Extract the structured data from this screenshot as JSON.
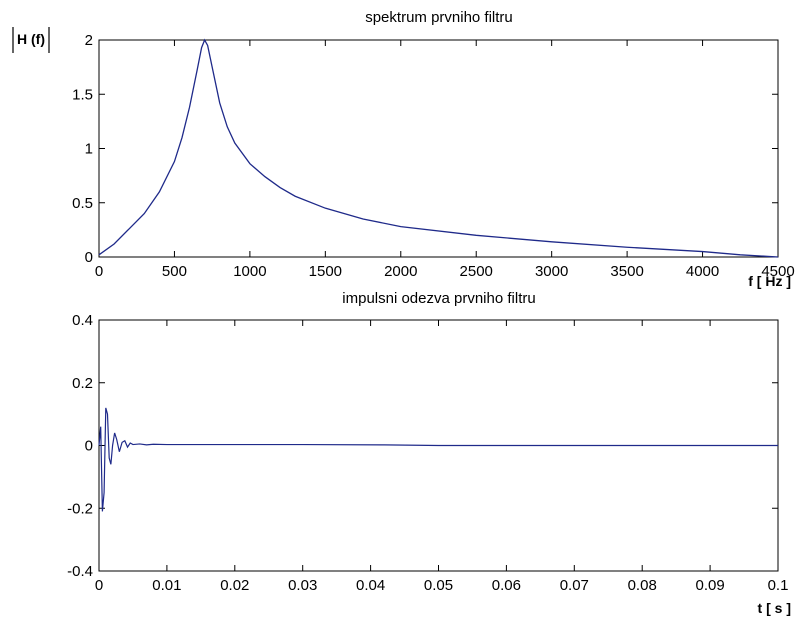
{
  "chart_data": [
    {
      "type": "line",
      "title": "spektrum prvniho filtru",
      "xlabel": "f [ Hz ]",
      "ylabel": "H (f)",
      "xlim": [
        0,
        4500
      ],
      "ylim": [
        0,
        2
      ],
      "xticks": [
        "0",
        "500",
        "1000",
        "1500",
        "2000",
        "2500",
        "3000",
        "3500",
        "4000",
        "4500"
      ],
      "yticks": [
        "0",
        "0.5",
        "1",
        "1.5",
        "2"
      ],
      "grid": false,
      "line_color": "#1f2a8a",
      "series": [
        {
          "x": [
            0,
            100,
            200,
            300,
            400,
            500,
            550,
            600,
            650,
            680,
            700,
            720,
            750,
            800,
            850,
            900,
            1000,
            1100,
            1200,
            1300,
            1500,
            1750,
            2000,
            2500,
            3000,
            3500,
            4000,
            4250,
            4500
          ],
          "values": [
            0.02,
            0.12,
            0.26,
            0.4,
            0.6,
            0.88,
            1.1,
            1.38,
            1.72,
            1.93,
            2.0,
            1.95,
            1.75,
            1.42,
            1.2,
            1.05,
            0.86,
            0.74,
            0.64,
            0.56,
            0.45,
            0.35,
            0.28,
            0.2,
            0.14,
            0.09,
            0.05,
            0.02,
            0.0
          ]
        }
      ]
    },
    {
      "type": "line",
      "title": "impulsni odezva prvniho filtru",
      "xlabel": "t [ s ]",
      "ylabel": "",
      "xlim": [
        0,
        0.1
      ],
      "ylim": [
        -0.4,
        0.4
      ],
      "xticks": [
        "0",
        "0.01",
        "0.02",
        "0.03",
        "0.04",
        "0.05",
        "0.06",
        "0.07",
        "0.08",
        "0.09",
        "0.1"
      ],
      "yticks": [
        "-0.4",
        "-0.2",
        "0",
        "0.2",
        "0.4"
      ],
      "grid": false,
      "line_color": "#1f2a8a",
      "series": [
        {
          "x": [
            0,
            0.00025,
            0.0005,
            0.00075,
            0.001,
            0.00125,
            0.0015,
            0.00175,
            0.002,
            0.0023,
            0.0026,
            0.003,
            0.0034,
            0.0038,
            0.0042,
            0.0046,
            0.005,
            0.006,
            0.007,
            0.008,
            0.01,
            0.02,
            0.03,
            0.042,
            0.05,
            0.1
          ],
          "values": [
            0.0,
            0.06,
            -0.21,
            -0.15,
            0.12,
            0.1,
            -0.04,
            -0.06,
            0.0,
            0.04,
            0.02,
            -0.02,
            0.01,
            0.015,
            -0.005,
            0.008,
            0.003,
            0.005,
            0.002,
            0.004,
            0.003,
            0.003,
            0.003,
            0.002,
            0.0,
            0.0
          ]
        }
      ]
    }
  ]
}
